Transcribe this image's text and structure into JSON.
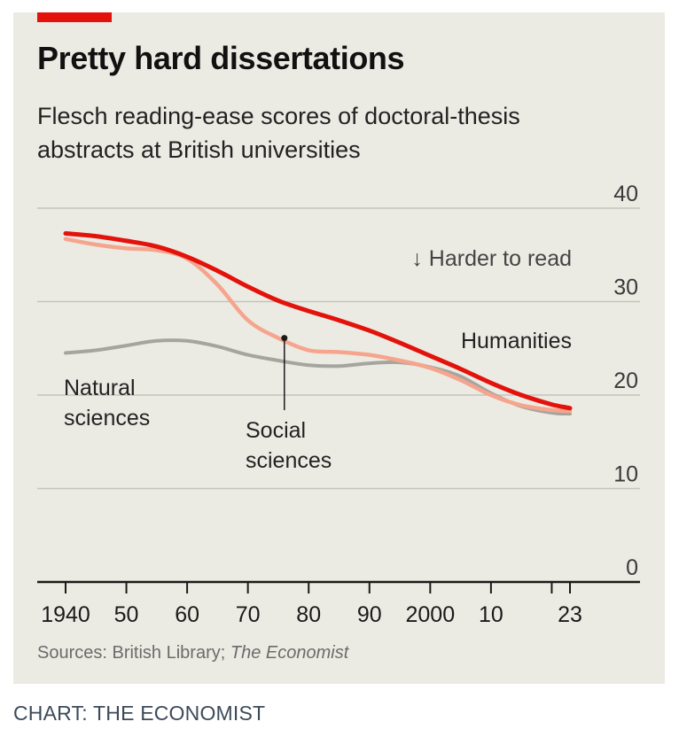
{
  "header": {
    "title": "Pretty hard dissertations",
    "subtitle": "Flesch reading-ease scores of doctoral-thesis abstracts at British universities"
  },
  "footer": {
    "source_prefix": "Sources: British Library; ",
    "source_italic": "The Economist",
    "credit": "CHART: THE ECONOMIST"
  },
  "colors": {
    "panel": "#ecebe3",
    "accent": "#e3120b",
    "humanities": "#e3120b",
    "social_sciences": "#f5a58d",
    "natural_sciences": "#a5a59f"
  },
  "chart_data": {
    "type": "line",
    "title": "Pretty hard dissertations",
    "subtitle": "Flesch reading-ease scores of doctoral-thesis abstracts at British universities",
    "xlim": [
      1940,
      2023
    ],
    "ylim": [
      0,
      40
    ],
    "grid": true,
    "x_ticks": [
      1940,
      1950,
      1960,
      1970,
      1980,
      1990,
      2000,
      2010,
      2020,
      2023
    ],
    "x_tick_labels": [
      {
        "value": 1940,
        "label": "1940"
      },
      {
        "value": 1950,
        "label": "50"
      },
      {
        "value": 1960,
        "label": "60"
      },
      {
        "value": 1970,
        "label": "70"
      },
      {
        "value": 1980,
        "label": "80"
      },
      {
        "value": 1990,
        "label": "90"
      },
      {
        "value": 2000,
        "label": "2000"
      },
      {
        "value": 2010,
        "label": "10"
      },
      {
        "value": 2023,
        "label": "23"
      }
    ],
    "y_ticks": [
      {
        "value": 0,
        "label": "0"
      },
      {
        "value": 10,
        "label": "10"
      },
      {
        "value": 20,
        "label": "20"
      },
      {
        "value": 30,
        "label": "30"
      },
      {
        "value": 40,
        "label": "40"
      }
    ],
    "annotation": "↓ Harder to read",
    "series": [
      {
        "name": "Natural sciences",
        "label": [
          "Natural",
          "sciences"
        ],
        "color": "#a5a59f",
        "x": [
          1940,
          1945,
          1950,
          1955,
          1960,
          1965,
          1970,
          1975,
          1980,
          1985,
          1990,
          1995,
          2000,
          2005,
          2010,
          2015,
          2020,
          2023
        ],
        "y": [
          24.5,
          24.8,
          25.3,
          25.8,
          25.8,
          25.2,
          24.3,
          23.7,
          23.2,
          23.1,
          23.4,
          23.5,
          23.0,
          22.0,
          20.2,
          18.8,
          18.1,
          18.0
        ]
      },
      {
        "name": "Social sciences",
        "label": [
          "Social",
          "sciences"
        ],
        "color": "#f5a58d",
        "x": [
          1940,
          1945,
          1950,
          1955,
          1960,
          1965,
          1970,
          1975,
          1980,
          1985,
          1990,
          1995,
          2000,
          2005,
          2010,
          2015,
          2020,
          2023
        ],
        "y": [
          36.7,
          36.1,
          35.7,
          35.5,
          34.6,
          31.8,
          28.0,
          26.1,
          24.8,
          24.6,
          24.3,
          23.7,
          22.9,
          21.6,
          20.0,
          18.9,
          18.4,
          18.3
        ]
      },
      {
        "name": "Humanities",
        "label": [
          "Humanities"
        ],
        "color": "#e3120b",
        "x": [
          1940,
          1945,
          1950,
          1955,
          1960,
          1965,
          1970,
          1975,
          1980,
          1985,
          1990,
          1995,
          2000,
          2005,
          2010,
          2015,
          2020,
          2023
        ],
        "y": [
          37.3,
          37.0,
          36.5,
          35.9,
          34.8,
          33.3,
          31.6,
          30.1,
          29.0,
          28.0,
          26.9,
          25.6,
          24.2,
          22.8,
          21.3,
          20.0,
          19.0,
          18.6
        ]
      }
    ],
    "callout": {
      "series": "Social sciences",
      "x": 1976,
      "y": 26.1
    }
  }
}
